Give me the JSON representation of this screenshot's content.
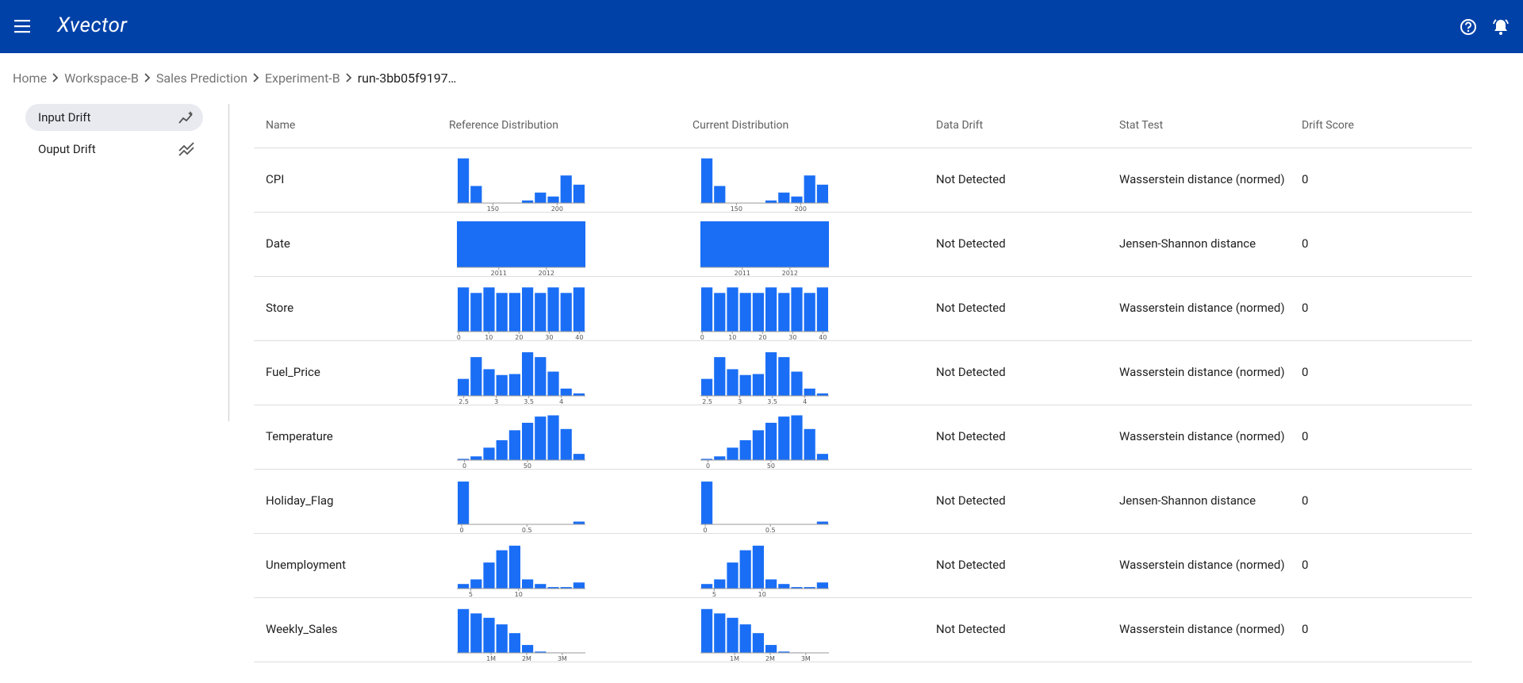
{
  "header": {
    "logo": "Xvector"
  },
  "breadcrumb": [
    "Home",
    "Workspace-B",
    "Sales Prediction",
    "Experiment-B",
    "run-3bb05f9197…"
  ],
  "sidebar": [
    "Input Drift",
    "Ouput Drift"
  ],
  "table": {
    "columns": [
      "Name",
      "Reference Distribution",
      "Current Distribution",
      "Data Drift",
      "Stat Test",
      "Drift Score"
    ],
    "rows": [
      {
        "name": "CPI",
        "data_drift": "Not Detected",
        "stat_test": "Wasserstein distance (normed)",
        "drift_score": 0,
        "histogram": {
          "xlim": [
            122,
            222
          ],
          "ylim": [
            0,
            0.035
          ],
          "xticks": [
            150,
            200
          ],
          "reference": [
            0.034,
            0.013,
            0,
            0,
            0,
            0.002,
            0.008,
            0.005,
            0.021,
            0.014
          ],
          "current": [
            0.034,
            0.013,
            0,
            0,
            0,
            0.002,
            0.008,
            0.005,
            0.021,
            0.014
          ]
        }
      },
      {
        "name": "Date",
        "data_drift": "Not Detected",
        "stat_test": "Jensen-Shannon distance",
        "drift_score": 0,
        "histogram": {
          "xlim": [
            2010.12,
            2012.82
          ],
          "ylim": [
            0,
            1
          ],
          "xticks": [
            2011,
            2012
          ],
          "reference": [
            1
          ],
          "current": [
            1
          ]
        }
      },
      {
        "name": "Store",
        "data_drift": "Not Detected",
        "stat_test": "Wasserstein distance (normed)",
        "drift_score": 0,
        "histogram": {
          "xlim": [
            -0.6,
            42
          ],
          "ylim": [
            0,
            0.025
          ],
          "xticks": [
            0,
            10,
            20,
            30,
            40
          ],
          "reference": [
            0.024,
            0.021,
            0.024,
            0.021,
            0.021,
            0.024,
            0.021,
            0.024,
            0.021,
            0.024
          ],
          "current": [
            0.024,
            0.021,
            0.024,
            0.021,
            0.021,
            0.024,
            0.021,
            0.024,
            0.021,
            0.024
          ]
        }
      },
      {
        "name": "Fuel_Price",
        "data_drift": "Not Detected",
        "stat_test": "Wasserstein distance (normed)",
        "drift_score": 0,
        "histogram": {
          "xlim": [
            2.395,
            4.37
          ],
          "ylim": [
            0,
            0.95
          ],
          "xticks": [
            2.5,
            3,
            3.5,
            4
          ],
          "reference": [
            0.35,
            0.8,
            0.55,
            0.43,
            0.45,
            0.9,
            0.8,
            0.5,
            0.15,
            0.05
          ],
          "current": [
            0.35,
            0.8,
            0.55,
            0.43,
            0.45,
            0.9,
            0.8,
            0.5,
            0.15,
            0.05
          ]
        }
      },
      {
        "name": "Temperature",
        "data_drift": "Not Detected",
        "stat_test": "Wasserstein distance (normed)",
        "drift_score": 0,
        "histogram": {
          "xlim": [
            -6,
            96
          ],
          "ylim": [
            0,
            0.037
          ],
          "xticks": [
            0,
            50
          ],
          "reference": [
            0.001,
            0.003,
            0.01,
            0.016,
            0.024,
            0.03,
            0.035,
            0.036,
            0.025,
            0.005
          ],
          "current": [
            0.001,
            0.003,
            0.01,
            0.016,
            0.024,
            0.03,
            0.035,
            0.036,
            0.025,
            0.005
          ]
        }
      },
      {
        "name": "Holiday_Flag",
        "data_drift": "Not Detected",
        "stat_test": "Jensen-Shannon distance",
        "drift_score": 0,
        "histogram": {
          "xlim": [
            -0.037,
            0.949
          ],
          "ylim": [
            0,
            10
          ],
          "xticks": [
            0,
            0.5
          ],
          "reference": [
            9.3,
            0,
            0,
            0,
            0,
            0,
            0,
            0,
            0,
            0.6
          ],
          "current": [
            9.3,
            0,
            0,
            0,
            0,
            0,
            0,
            0,
            0,
            0.6
          ]
        }
      },
      {
        "name": "Unemployment",
        "data_drift": "Not Detected",
        "stat_test": "Wasserstein distance (normed)",
        "drift_score": 0,
        "histogram": {
          "xlim": [
            3.56,
            16.98
          ],
          "ylim": [
            0,
            0.3
          ],
          "xticks": [
            5,
            10
          ],
          "reference": [
            0.03,
            0.06,
            0.17,
            0.25,
            0.28,
            0.06,
            0.03,
            0.01,
            0.01,
            0.04
          ],
          "current": [
            0.03,
            0.06,
            0.17,
            0.25,
            0.28,
            0.06,
            0.03,
            0.01,
            0.01,
            0.04
          ]
        }
      },
      {
        "name": "Weekly_Sales",
        "data_drift": "Not Detected",
        "stat_test": "Wasserstein distance (normed)",
        "drift_score": 0,
        "histogram": {
          "xlim": [
            40000,
            3650000
          ],
          "ylim": [
            0,
            1.05
          ],
          "xticks": [
            {
              "value": 1000000,
              "label": "1M"
            },
            {
              "value": 2000000,
              "label": "2M"
            },
            {
              "value": 3000000,
              "label": "3M"
            }
          ],
          "reference": [
            1.0,
            0.9,
            0.8,
            0.65,
            0.45,
            0.18,
            0.03,
            0.01,
            0.005,
            0.005
          ],
          "current": [
            1.0,
            0.9,
            0.8,
            0.65,
            0.45,
            0.18,
            0.03,
            0.01,
            0.005,
            0.005
          ]
        }
      }
    ]
  }
}
